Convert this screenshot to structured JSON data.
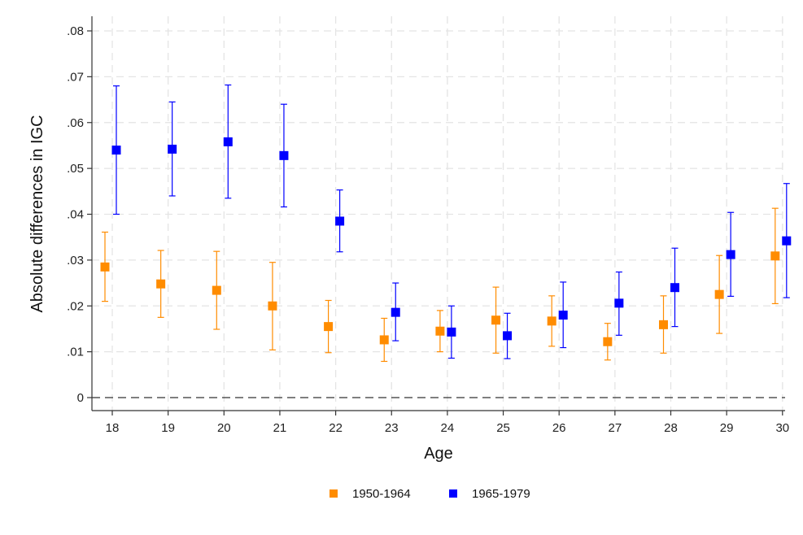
{
  "chart_data": {
    "type": "scatter",
    "xlabel": "Age",
    "ylabel": "Absolute differences in IGC",
    "categories": [
      "18",
      "19",
      "20",
      "21",
      "22",
      "23",
      "24",
      "25",
      "26",
      "27",
      "28",
      "29",
      "30"
    ],
    "ylim": [
      0,
      0.08
    ],
    "yticks": [
      0,
      0.01,
      0.02,
      0.03,
      0.04,
      0.05,
      0.06,
      0.07,
      0.08
    ],
    "ytick_labels": [
      "0",
      ".01",
      ".02",
      ".03",
      ".04",
      ".05",
      ".06",
      ".07",
      ".08"
    ],
    "grid": true,
    "reference_line": 0,
    "legend_position": "bottom",
    "series": [
      {
        "name": "1950-1964",
        "color": "#FF8C00",
        "values": [
          0.0285,
          0.0248,
          0.0234,
          0.02,
          0.0155,
          0.0126,
          0.0145,
          0.0169,
          0.0167,
          0.0122,
          0.0159,
          0.0225,
          0.0309
        ],
        "lower": [
          0.021,
          0.0175,
          0.0149,
          0.0104,
          0.0098,
          0.0079,
          0.01,
          0.0097,
          0.0112,
          0.0082,
          0.0097,
          0.014,
          0.0205
        ],
        "upper": [
          0.0361,
          0.0321,
          0.0319,
          0.0295,
          0.0212,
          0.0173,
          0.019,
          0.0241,
          0.0222,
          0.0162,
          0.0222,
          0.031,
          0.0413
        ]
      },
      {
        "name": "1965-1979",
        "color": "#0000FF",
        "values": [
          0.054,
          0.0542,
          0.0558,
          0.0528,
          0.0385,
          0.0186,
          0.0143,
          0.0135,
          0.018,
          0.0206,
          0.024,
          0.0312,
          0.0342
        ],
        "lower": [
          0.04,
          0.044,
          0.0435,
          0.0416,
          0.0318,
          0.0124,
          0.0086,
          0.0085,
          0.0109,
          0.0136,
          0.0155,
          0.0221,
          0.0218
        ],
        "upper": [
          0.068,
          0.0645,
          0.0682,
          0.064,
          0.0453,
          0.025,
          0.02,
          0.0184,
          0.0252,
          0.0274,
          0.0326,
          0.0404,
          0.0467
        ]
      }
    ]
  }
}
